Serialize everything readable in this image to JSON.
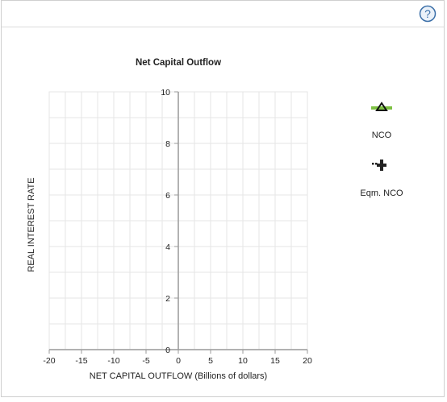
{
  "help": {
    "icon": "help-circle-icon",
    "glyph": "?"
  },
  "chart_data": {
    "type": "line",
    "title": "Net Capital Outflow",
    "xlabel": "NET CAPITAL OUTFLOW (Billions of dollars)",
    "ylabel": "REAL INTEREST RATE",
    "xlim": [
      -20,
      20
    ],
    "ylim": [
      0,
      10
    ],
    "x_ticks": [
      -20,
      -15,
      -10,
      -5,
      0,
      5,
      10,
      15,
      20
    ],
    "y_ticks": [
      0,
      2,
      4,
      6,
      8,
      10
    ],
    "grid": true,
    "series": []
  },
  "legend": {
    "items": [
      {
        "label": "NCO",
        "icon": "triangle-line-tool-icon",
        "color": "#7dc142"
      },
      {
        "label": "Eqm. NCO",
        "icon": "plus-cross-tool-icon",
        "color": "#222222"
      }
    ]
  },
  "colors": {
    "grid": "#e6e6e6",
    "axis": "#999999",
    "accent": "#3b6fa8"
  }
}
